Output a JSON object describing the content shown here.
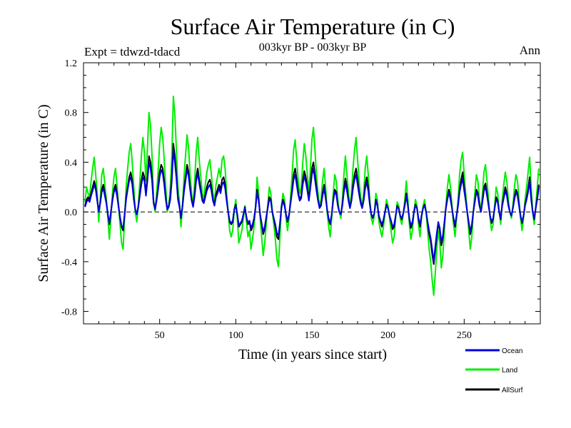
{
  "chart_data": {
    "type": "line",
    "title": "Surface Air Temperature (in C)",
    "subtitle": "003kyr BP - 003kyr BP",
    "experiment": "Expt = tdwzd-tdacd",
    "period": "Ann",
    "xlabel": "Time (in years since start)",
    "ylabel": "Surface Air Temperature (in C)",
    "xlim": [
      0,
      300
    ],
    "ylim": [
      -0.9,
      1.2
    ],
    "x_ticks": [
      50,
      100,
      150,
      200,
      250
    ],
    "y_ticks": [
      -0.8,
      -0.4,
      0.0,
      0.4,
      0.8,
      1.2
    ],
    "y_tick_labels": [
      "-0.8",
      "-0.4",
      "0.0",
      "0.4",
      "0.8",
      "1.2"
    ],
    "zero_line": true,
    "x_start": 1,
    "x_step": 1,
    "series": [
      {
        "name": "Land",
        "color": "#00ee00",
        "values": [
          0.08,
          0.2,
          0.15,
          0.12,
          0.25,
          0.35,
          0.44,
          0.3,
          0.15,
          -0.08,
          0.1,
          0.3,
          0.35,
          0.22,
          0.1,
          -0.05,
          -0.22,
          -0.05,
          0.15,
          0.28,
          0.35,
          0.22,
          0.05,
          -0.1,
          -0.25,
          -0.3,
          -0.05,
          0.2,
          0.35,
          0.48,
          0.55,
          0.4,
          0.2,
          0.0,
          -0.08,
          0.05,
          0.25,
          0.45,
          0.6,
          0.48,
          0.25,
          0.52,
          0.8,
          0.7,
          0.45,
          0.1,
          0.0,
          0.15,
          0.32,
          0.55,
          0.68,
          0.6,
          0.42,
          0.2,
          0.0,
          0.05,
          0.2,
          0.45,
          0.93,
          0.78,
          0.5,
          0.2,
          0.08,
          -0.12,
          0.05,
          0.28,
          0.45,
          0.62,
          0.52,
          0.3,
          0.15,
          0.05,
          0.25,
          0.48,
          0.6,
          0.42,
          0.28,
          0.15,
          0.1,
          0.22,
          0.32,
          0.38,
          0.42,
          0.3,
          0.15,
          0.08,
          0.22,
          0.28,
          0.35,
          0.28,
          0.42,
          0.45,
          0.35,
          0.15,
          0.0,
          -0.15,
          -0.2,
          -0.15,
          0.02,
          0.1,
          -0.05,
          -0.25,
          -0.2,
          -0.15,
          -0.05,
          0.05,
          -0.08,
          -0.2,
          -0.15,
          -0.3,
          -0.22,
          -0.12,
          0.05,
          0.28,
          0.15,
          -0.05,
          -0.2,
          -0.35,
          -0.25,
          -0.1,
          0.05,
          0.2,
          0.15,
          0.0,
          -0.1,
          -0.22,
          -0.38,
          -0.44,
          -0.2,
          0.05,
          0.15,
          0.1,
          -0.05,
          -0.15,
          -0.05,
          0.12,
          0.3,
          0.5,
          0.58,
          0.42,
          0.25,
          0.15,
          0.2,
          0.4,
          0.55,
          0.45,
          0.3,
          0.15,
          0.35,
          0.58,
          0.68,
          0.5,
          0.3,
          0.15,
          0.05,
          0.1,
          0.25,
          0.35,
          0.2,
          0.0,
          -0.12,
          -0.2,
          -0.05,
          0.15,
          0.3,
          0.25,
          0.1,
          0.0,
          -0.05,
          0.1,
          0.3,
          0.45,
          0.3,
          0.15,
          0.05,
          0.15,
          0.35,
          0.5,
          0.6,
          0.42,
          0.25,
          0.12,
          0.05,
          0.15,
          0.35,
          0.45,
          0.3,
          0.1,
          -0.05,
          -0.1,
          -0.02,
          0.15,
          0.1,
          -0.08,
          -0.15,
          -0.2,
          -0.12,
          0.0,
          0.1,
          0.05,
          -0.05,
          -0.15,
          -0.25,
          -0.2,
          -0.05,
          0.08,
          0.05,
          -0.05,
          -0.1,
          -0.02,
          0.1,
          0.25,
          0.1,
          -0.1,
          -0.22,
          -0.15,
          0.0,
          0.1,
          0.05,
          -0.1,
          -0.2,
          -0.05,
          0.05,
          0.1,
          0.0,
          -0.15,
          -0.3,
          -0.4,
          -0.55,
          -0.67,
          -0.5,
          -0.3,
          -0.15,
          -0.25,
          -0.45,
          -0.35,
          -0.15,
          0.05,
          0.2,
          0.3,
          0.2,
          0.05,
          -0.1,
          -0.2,
          -0.05,
          0.1,
          0.3,
          0.42,
          0.48,
          0.3,
          0.15,
          0.0,
          -0.15,
          -0.3,
          -0.2,
          0.0,
          0.15,
          0.3,
          0.25,
          0.1,
          0.0,
          0.15,
          0.32,
          0.38,
          0.25,
          0.1,
          -0.05,
          -0.15,
          -0.1,
          0.05,
          0.2,
          0.15,
          0.0,
          -0.1,
          0.1,
          0.22,
          0.32,
          0.25,
          0.1,
          0.0,
          -0.05,
          0.05,
          0.2,
          0.3,
          0.25,
          0.1,
          -0.05,
          -0.15,
          -0.05,
          0.1,
          0.2,
          0.32,
          0.44,
          0.2,
          0.0,
          -0.1,
          0.05,
          0.2,
          0.35
        ]
      },
      {
        "name": "AllSurf",
        "color": "#000000",
        "values": [
          0.05,
          0.1,
          0.12,
          0.1,
          0.15,
          0.2,
          0.25,
          0.2,
          0.1,
          0.0,
          0.08,
          0.18,
          0.22,
          0.15,
          0.08,
          -0.02,
          -0.1,
          0.0,
          0.1,
          0.18,
          0.22,
          0.15,
          0.05,
          -0.05,
          -0.12,
          -0.15,
          -0.02,
          0.12,
          0.2,
          0.28,
          0.32,
          0.25,
          0.12,
          0.02,
          -0.02,
          0.05,
          0.15,
          0.25,
          0.32,
          0.28,
          0.15,
          0.28,
          0.45,
          0.4,
          0.28,
          0.08,
          0.02,
          0.1,
          0.2,
          0.32,
          0.38,
          0.35,
          0.25,
          0.12,
          0.02,
          0.05,
          0.12,
          0.28,
          0.55,
          0.45,
          0.3,
          0.12,
          0.05,
          -0.05,
          0.05,
          0.18,
          0.28,
          0.38,
          0.32,
          0.2,
          0.1,
          0.05,
          0.15,
          0.28,
          0.35,
          0.26,
          0.18,
          0.1,
          0.08,
          0.14,
          0.2,
          0.24,
          0.26,
          0.2,
          0.1,
          0.06,
          0.14,
          0.18,
          0.22,
          0.18,
          0.26,
          0.28,
          0.22,
          0.1,
          0.0,
          -0.08,
          -0.1,
          -0.08,
          0.02,
          0.06,
          -0.02,
          -0.12,
          -0.1,
          -0.08,
          -0.02,
          0.04,
          -0.04,
          -0.1,
          -0.08,
          -0.15,
          -0.12,
          -0.06,
          0.04,
          0.18,
          0.1,
          -0.02,
          -0.1,
          -0.18,
          -0.14,
          -0.05,
          0.04,
          0.12,
          0.1,
          0.0,
          -0.06,
          -0.12,
          -0.2,
          -0.22,
          -0.1,
          0.04,
          0.1,
          0.06,
          -0.02,
          -0.08,
          -0.02,
          0.08,
          0.18,
          0.3,
          0.35,
          0.26,
          0.16,
          0.1,
          0.13,
          0.25,
          0.33,
          0.28,
          0.2,
          0.1,
          0.22,
          0.35,
          0.4,
          0.3,
          0.2,
          0.1,
          0.04,
          0.06,
          0.15,
          0.22,
          0.13,
          0.02,
          -0.06,
          -0.1,
          -0.02,
          0.1,
          0.18,
          0.16,
          0.06,
          0.0,
          -0.02,
          0.06,
          0.18,
          0.27,
          0.2,
          0.1,
          0.04,
          0.1,
          0.22,
          0.3,
          0.35,
          0.26,
          0.16,
          0.08,
          0.04,
          0.1,
          0.22,
          0.28,
          0.2,
          0.07,
          -0.02,
          -0.05,
          -0.01,
          0.1,
          0.06,
          -0.04,
          -0.08,
          -0.12,
          -0.07,
          0.0,
          0.06,
          0.03,
          -0.03,
          -0.08,
          -0.14,
          -0.12,
          -0.03,
          0.05,
          0.03,
          -0.03,
          -0.06,
          -0.01,
          0.06,
          0.15,
          0.06,
          -0.06,
          -0.13,
          -0.09,
          0.0,
          0.06,
          0.03,
          -0.06,
          -0.12,
          -0.03,
          0.03,
          0.06,
          0.0,
          -0.09,
          -0.18,
          -0.24,
          -0.34,
          -0.42,
          -0.31,
          -0.19,
          -0.09,
          -0.15,
          -0.27,
          -0.21,
          -0.09,
          0.03,
          0.12,
          0.18,
          0.12,
          0.03,
          -0.06,
          -0.12,
          -0.03,
          0.06,
          0.18,
          0.26,
          0.32,
          0.2,
          0.1,
          0.0,
          -0.09,
          -0.18,
          -0.12,
          0.0,
          0.09,
          0.18,
          0.15,
          0.06,
          0.0,
          0.09,
          0.2,
          0.23,
          0.15,
          0.06,
          -0.03,
          -0.09,
          -0.06,
          0.03,
          0.12,
          0.09,
          0.0,
          -0.06,
          0.06,
          0.13,
          0.2,
          0.15,
          0.06,
          0.0,
          -0.03,
          0.03,
          0.12,
          0.18,
          0.15,
          0.06,
          -0.03,
          -0.09,
          -0.03,
          0.06,
          0.12,
          0.19,
          0.28,
          0.12,
          0.0,
          -0.06,
          0.03,
          0.12,
          0.22
        ]
      },
      {
        "name": "Ocean",
        "color": "#0000dd",
        "values": [
          0.04,
          0.08,
          0.1,
          0.08,
          0.13,
          0.17,
          0.22,
          0.18,
          0.09,
          0.0,
          0.07,
          0.16,
          0.19,
          0.13,
          0.07,
          -0.02,
          -0.09,
          0.0,
          0.09,
          0.16,
          0.19,
          0.13,
          0.04,
          -0.04,
          -0.11,
          -0.13,
          -0.02,
          0.1,
          0.18,
          0.25,
          0.28,
          0.22,
          0.1,
          0.02,
          -0.02,
          0.04,
          0.13,
          0.22,
          0.28,
          0.25,
          0.13,
          0.25,
          0.4,
          0.35,
          0.25,
          0.07,
          0.02,
          0.09,
          0.18,
          0.28,
          0.34,
          0.31,
          0.22,
          0.1,
          0.02,
          0.04,
          0.1,
          0.25,
          0.5,
          0.4,
          0.27,
          0.1,
          0.04,
          -0.04,
          0.04,
          0.16,
          0.25,
          0.34,
          0.29,
          0.18,
          0.09,
          0.04,
          0.13,
          0.25,
          0.31,
          0.23,
          0.16,
          0.09,
          0.07,
          0.12,
          0.17,
          0.2,
          0.22,
          0.17,
          0.09,
          0.05,
          0.12,
          0.15,
          0.19,
          0.15,
          0.22,
          0.24,
          0.19,
          0.09,
          0.0,
          -0.07,
          -0.09,
          -0.07,
          0.02,
          0.05,
          -0.02,
          -0.11,
          -0.09,
          -0.07,
          -0.02,
          0.03,
          -0.04,
          -0.09,
          -0.07,
          -0.13,
          -0.1,
          -0.05,
          0.03,
          0.16,
          0.09,
          -0.02,
          -0.09,
          -0.16,
          -0.12,
          -0.04,
          0.03,
          0.1,
          0.09,
          0.0,
          -0.05,
          -0.1,
          -0.17,
          -0.19,
          -0.09,
          0.03,
          0.09,
          0.05,
          -0.02,
          -0.07,
          -0.02,
          0.07,
          0.16,
          0.26,
          0.3,
          0.22,
          0.14,
          0.09,
          0.11,
          0.22,
          0.29,
          0.24,
          0.17,
          0.09,
          0.19,
          0.3,
          0.35,
          0.26,
          0.17,
          0.09,
          0.03,
          0.05,
          0.13,
          0.19,
          0.11,
          0.02,
          -0.05,
          -0.09,
          -0.02,
          0.09,
          0.16,
          0.14,
          0.05,
          0.0,
          -0.02,
          0.05,
          0.16,
          0.23,
          0.17,
          0.09,
          0.03,
          0.09,
          0.19,
          0.26,
          0.3,
          0.22,
          0.14,
          0.07,
          0.03,
          0.09,
          0.19,
          0.24,
          0.17,
          0.06,
          -0.02,
          -0.04,
          -0.01,
          0.09,
          0.05,
          -0.03,
          -0.07,
          -0.1,
          -0.06,
          0.0,
          0.05,
          0.03,
          -0.03,
          -0.07,
          -0.12,
          -0.1,
          -0.03,
          0.04,
          0.03,
          -0.03,
          -0.05,
          -0.01,
          0.05,
          0.13,
          0.05,
          -0.05,
          -0.11,
          -0.08,
          0.0,
          0.05,
          0.03,
          -0.05,
          -0.1,
          -0.03,
          0.03,
          0.05,
          0.0,
          -0.08,
          -0.15,
          -0.21,
          -0.3,
          -0.4,
          -0.28,
          -0.17,
          -0.08,
          -0.13,
          -0.24,
          -0.19,
          -0.08,
          0.03,
          0.1,
          0.16,
          0.1,
          0.03,
          -0.05,
          -0.1,
          -0.03,
          0.05,
          0.16,
          0.22,
          0.27,
          0.17,
          0.09,
          0.0,
          -0.08,
          -0.16,
          -0.1,
          0.0,
          0.08,
          0.16,
          0.13,
          0.05,
          0.0,
          0.08,
          0.17,
          0.2,
          0.13,
          0.05,
          -0.03,
          -0.08,
          -0.05,
          0.03,
          0.1,
          0.08,
          0.0,
          -0.05,
          0.05,
          0.11,
          0.17,
          0.13,
          0.05,
          0.0,
          -0.03,
          0.03,
          0.1,
          0.16,
          0.13,
          0.05,
          -0.03,
          -0.08,
          -0.03,
          0.05,
          0.1,
          0.16,
          0.25,
          0.1,
          0.0,
          -0.05,
          0.03,
          0.1,
          0.19
        ]
      }
    ],
    "legend": {
      "placement": "bottom-right",
      "entries": [
        "Ocean",
        "Land",
        "AllSurf"
      ]
    }
  }
}
